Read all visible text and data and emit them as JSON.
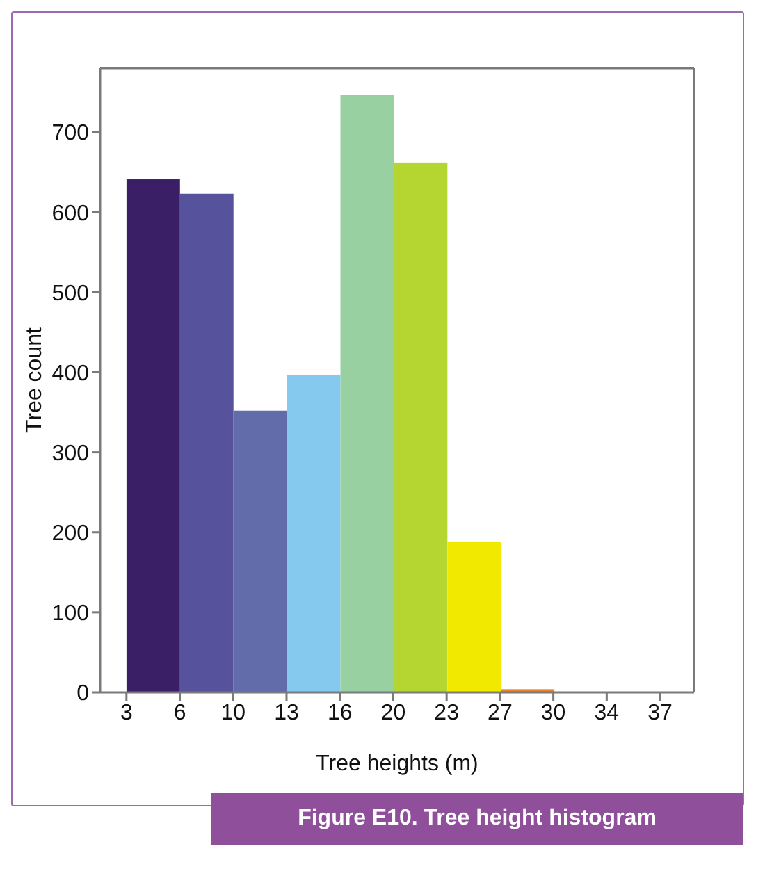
{
  "chart_data": {
    "type": "histogram",
    "title": "Figure E10. Tree height histogram",
    "xlabel": "Tree heights (m)",
    "ylabel": "Tree count",
    "bins": [
      2.6,
      6.05,
      9.5,
      12.95,
      16.4,
      19.85,
      23.3,
      26.75,
      30.2,
      33.65,
      37.1
    ],
    "values": [
      641,
      623,
      352,
      397,
      747,
      662,
      188,
      4,
      0,
      0
    ],
    "colors": [
      "#3a1f66",
      "#56539c",
      "#626caa",
      "#86c9ef",
      "#98d0a2",
      "#b5d631",
      "#f1ea00",
      "#e87f2a",
      "#e87f2a",
      "#e87f2a"
    ],
    "xlim": [
      0.9,
      39.3
    ],
    "xticks": [
      {
        "value": 2.6,
        "label": "3"
      },
      {
        "value": 6.05,
        "label": "6"
      },
      {
        "value": 9.5,
        "label": "10"
      },
      {
        "value": 12.95,
        "label": "13"
      },
      {
        "value": 16.4,
        "label": "16"
      },
      {
        "value": 19.85,
        "label": "20"
      },
      {
        "value": 23.3,
        "label": "23"
      },
      {
        "value": 26.75,
        "label": "27"
      },
      {
        "value": 30.2,
        "label": "30"
      },
      {
        "value": 33.65,
        "label": "34"
      },
      {
        "value": 37.1,
        "label": "37"
      }
    ],
    "ylim": [
      0,
      780
    ],
    "yticks": [
      0,
      100,
      200,
      300,
      400,
      500,
      600,
      700
    ]
  }
}
